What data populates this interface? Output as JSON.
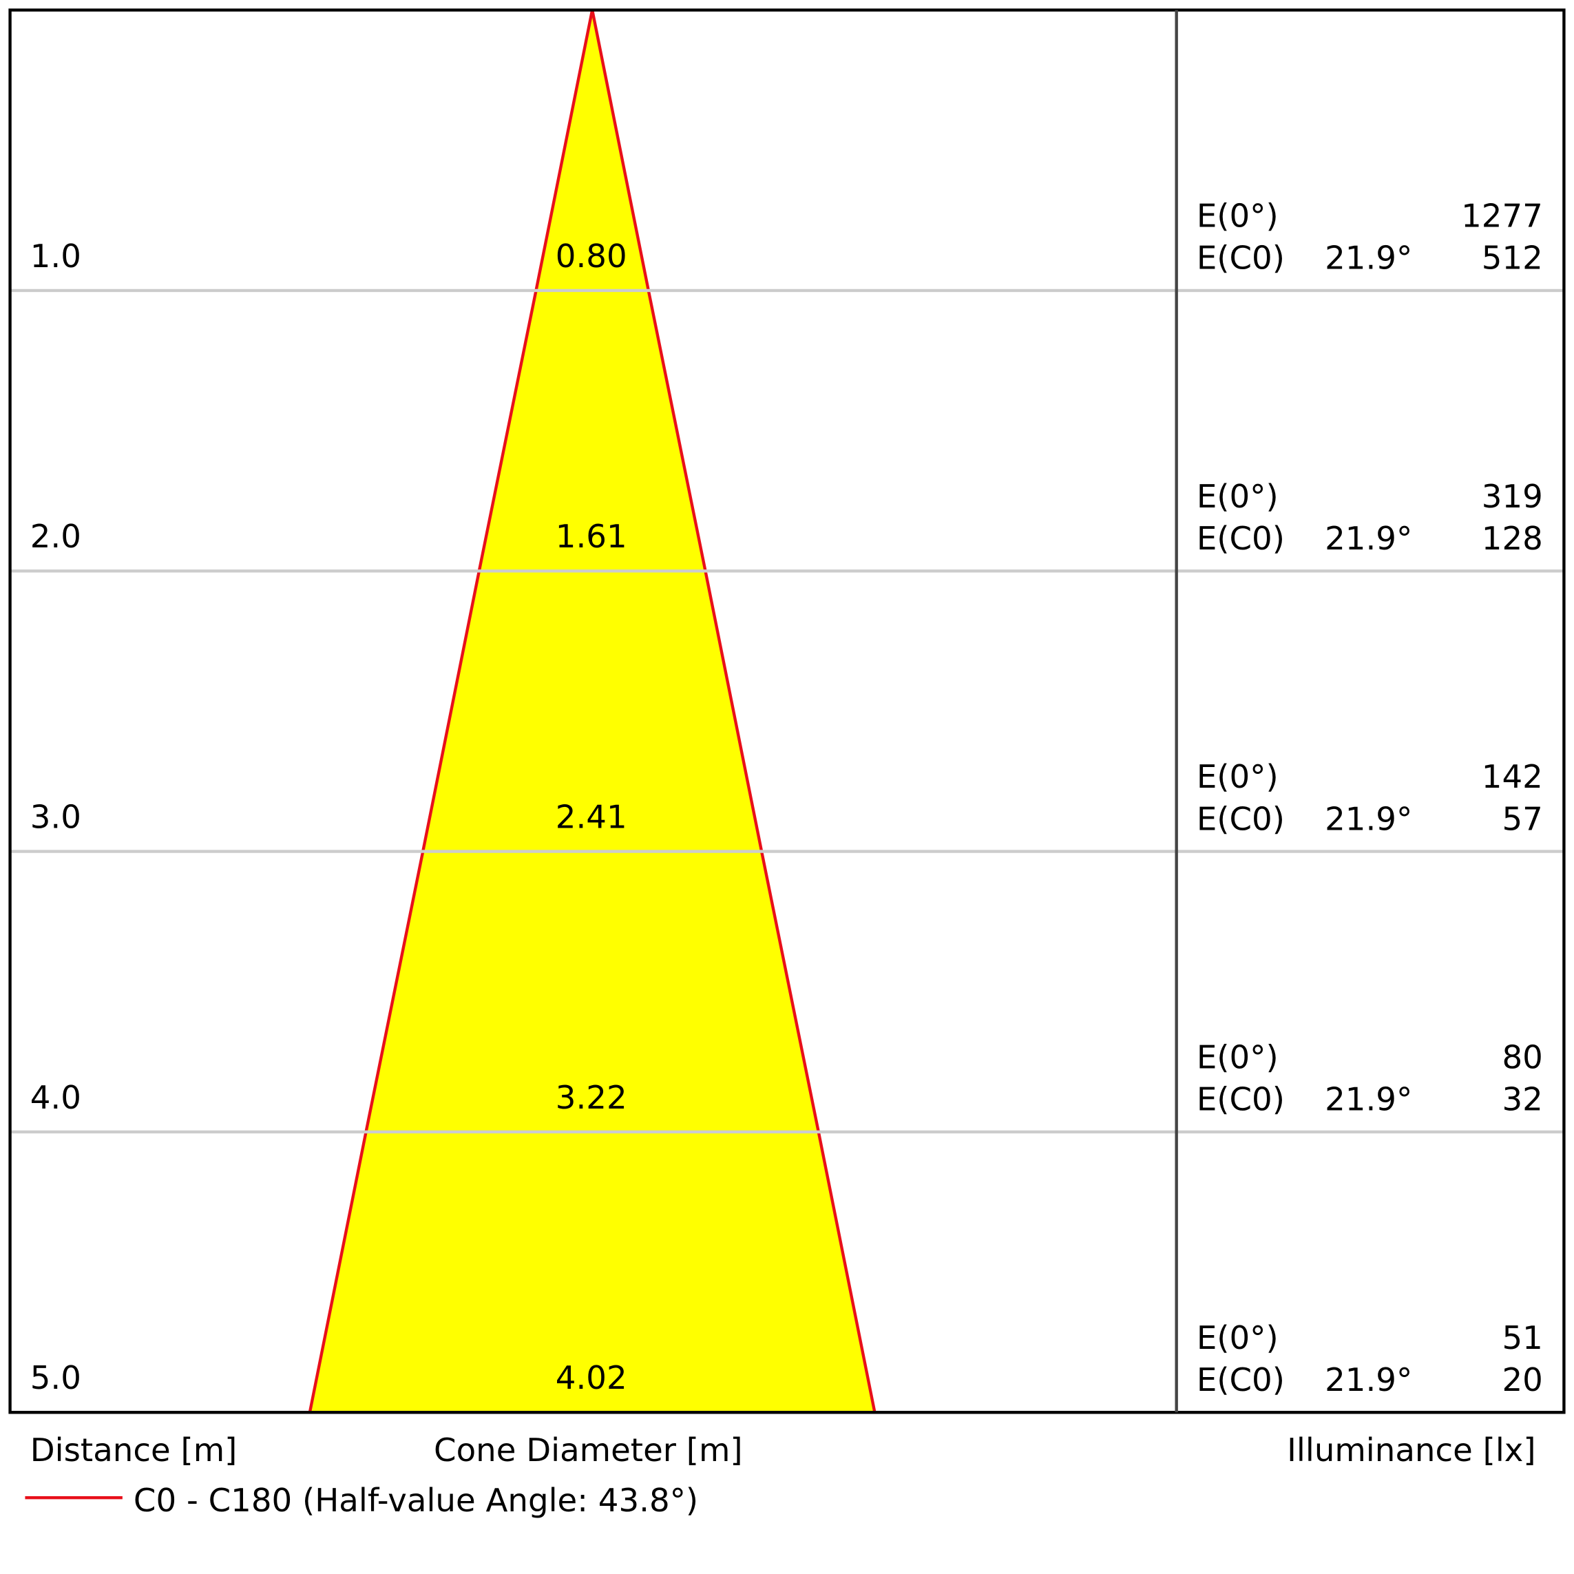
{
  "chart_data": {
    "type": "cone",
    "distances": [
      {
        "value": 1,
        "label": "1.0"
      },
      {
        "value": 2,
        "label": "2.0"
      },
      {
        "value": 3,
        "label": "3.0"
      },
      {
        "value": 4,
        "label": "4.0"
      },
      {
        "value": 5,
        "label": "5.0"
      }
    ],
    "dlim": [
      0,
      5
    ],
    "diameters": [
      {
        "value": 0.8,
        "label": "0.80"
      },
      {
        "value": 1.61,
        "label": "1.61"
      },
      {
        "value": 2.41,
        "label": "2.41"
      },
      {
        "value": 3.22,
        "label": "3.22"
      },
      {
        "value": 4.02,
        "label": "4.02"
      }
    ],
    "center_label": "E(0°)",
    "c0_label": "E(C0)",
    "illuminance_center": [
      1277,
      319,
      142,
      80,
      51
    ],
    "illuminance_c0": [
      512,
      128,
      57,
      32,
      20
    ],
    "c0_angle_labels": [
      "21.9°",
      "21.9°",
      "21.9°",
      "21.9°",
      "21.9°"
    ],
    "x_label_distance": "Distance [m]",
    "x_label_diameter": "Cone Diameter [m]",
    "x_label_illuminance": "Illuminance [lx]",
    "series": {
      "name": "C0 - C180 (Half-value Angle: 43.8°)",
      "color": "#e8101a"
    },
    "fill": "#ffff00"
  }
}
